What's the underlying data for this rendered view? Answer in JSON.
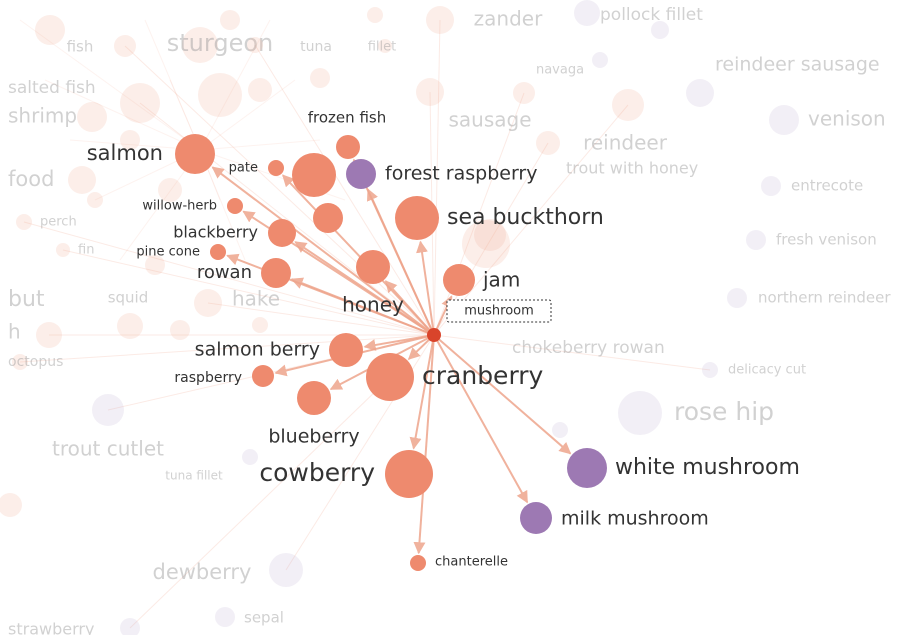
{
  "colors": {
    "food": "#ee8a6e",
    "mushroom": "#9d79b3",
    "focus": "#d9442b",
    "edge": "#eea58c",
    "background_food": "#f2b09a",
    "background_mushroom": "#c6b6d6"
  },
  "focus_node": {
    "id": "mushroom",
    "label": "mushroom",
    "group": "focus"
  },
  "connected_nodes": [
    {
      "id": "salmon",
      "label": "salmon",
      "group": "food"
    },
    {
      "id": "frozen-fish",
      "label": "frozen fish",
      "group": "food"
    },
    {
      "id": "pate",
      "label": "pate",
      "group": "food"
    },
    {
      "id": "forest-raspberry",
      "label": "forest raspberry",
      "group": "mushroom"
    },
    {
      "id": "willow-herb",
      "label": "willow-herb",
      "group": "food"
    },
    {
      "id": "sea-buckthorn",
      "label": "sea buckthorn",
      "group": "food"
    },
    {
      "id": "blackberry",
      "label": "blackberry",
      "group": "food"
    },
    {
      "id": "pine-cone",
      "label": "pine cone",
      "group": "food"
    },
    {
      "id": "rowan",
      "label": "rowan",
      "group": "food"
    },
    {
      "id": "jam",
      "label": "jam",
      "group": "food"
    },
    {
      "id": "honey",
      "label": "honey",
      "group": "food"
    },
    {
      "id": "salmon-berry",
      "label": "salmon berry",
      "group": "food"
    },
    {
      "id": "raspberry",
      "label": "raspberry",
      "group": "food"
    },
    {
      "id": "cranberry",
      "label": "cranberry",
      "group": "food"
    },
    {
      "id": "blueberry",
      "label": "blueberry",
      "group": "food"
    },
    {
      "id": "cowberry",
      "label": "cowberry",
      "group": "food"
    },
    {
      "id": "white-mushroom",
      "label": "white mushroom",
      "group": "mushroom"
    },
    {
      "id": "milk-mushroom",
      "label": "milk mushroom",
      "group": "mushroom"
    },
    {
      "id": "chanterelle",
      "label": "chanterelle",
      "group": "food"
    }
  ],
  "background_nodes": [
    {
      "label": "zander",
      "group": "food"
    },
    {
      "label": "pollock fillet",
      "group": "mushroom"
    },
    {
      "label": "fish",
      "group": "food"
    },
    {
      "label": "sturgeon",
      "group": "food"
    },
    {
      "label": "tuna",
      "group": "food"
    },
    {
      "label": "fillet",
      "group": "food"
    },
    {
      "label": "navaga",
      "group": "food"
    },
    {
      "label": "reindeer sausage",
      "group": "mushroom"
    },
    {
      "label": "salted fish",
      "group": "food"
    },
    {
      "label": "shrimp",
      "group": "food"
    },
    {
      "label": "sausage",
      "group": "food"
    },
    {
      "label": "venison",
      "group": "mushroom"
    },
    {
      "label": "reindeer",
      "group": "food"
    },
    {
      "label": "food",
      "group": "food"
    },
    {
      "label": "trout with honey",
      "group": "food"
    },
    {
      "label": "entrecote",
      "group": "mushroom"
    },
    {
      "label": "perch",
      "group": "food"
    },
    {
      "label": "fresh venison",
      "group": "mushroom"
    },
    {
      "label": "fin",
      "group": "food"
    },
    {
      "label": "squid",
      "group": "food"
    },
    {
      "label": "hake",
      "group": "food"
    },
    {
      "label": "northern reindeer",
      "group": "mushroom"
    },
    {
      "label": "but",
      "group": "food"
    },
    {
      "label": "h",
      "group": "food"
    },
    {
      "label": "octopus",
      "group": "food"
    },
    {
      "label": "chokeberry rowan",
      "group": "food"
    },
    {
      "label": "delicacy cut",
      "group": "mushroom"
    },
    {
      "label": "rose hip",
      "group": "mushroom"
    },
    {
      "label": "trout cutlet",
      "group": "mushroom"
    },
    {
      "label": "tuna fillet",
      "group": "mushroom"
    },
    {
      "label": "dewberry",
      "group": "mushroom"
    },
    {
      "label": "sepal",
      "group": "mushroom"
    },
    {
      "label": "strawberry",
      "group": "mushroom"
    }
  ],
  "edges": [
    {
      "from": "mushroom",
      "to": "salmon"
    },
    {
      "from": "mushroom",
      "to": "frozen-fish"
    },
    {
      "from": "mushroom",
      "to": "pate"
    },
    {
      "from": "mushroom",
      "to": "forest-raspberry"
    },
    {
      "from": "mushroom",
      "to": "willow-herb"
    },
    {
      "from": "mushroom",
      "to": "sea-buckthorn"
    },
    {
      "from": "mushroom",
      "to": "blackberry"
    },
    {
      "from": "mushroom",
      "to": "pine-cone"
    },
    {
      "from": "mushroom",
      "to": "rowan"
    },
    {
      "from": "mushroom",
      "to": "jam"
    },
    {
      "from": "mushroom",
      "to": "honey"
    },
    {
      "from": "mushroom",
      "to": "salmon-berry"
    },
    {
      "from": "mushroom",
      "to": "raspberry"
    },
    {
      "from": "mushroom",
      "to": "cranberry"
    },
    {
      "from": "mushroom",
      "to": "blueberry"
    },
    {
      "from": "mushroom",
      "to": "cowberry"
    },
    {
      "from": "mushroom",
      "to": "white-mushroom"
    },
    {
      "from": "mushroom",
      "to": "milk-mushroom"
    },
    {
      "from": "mushroom",
      "to": "chanterelle"
    }
  ]
}
